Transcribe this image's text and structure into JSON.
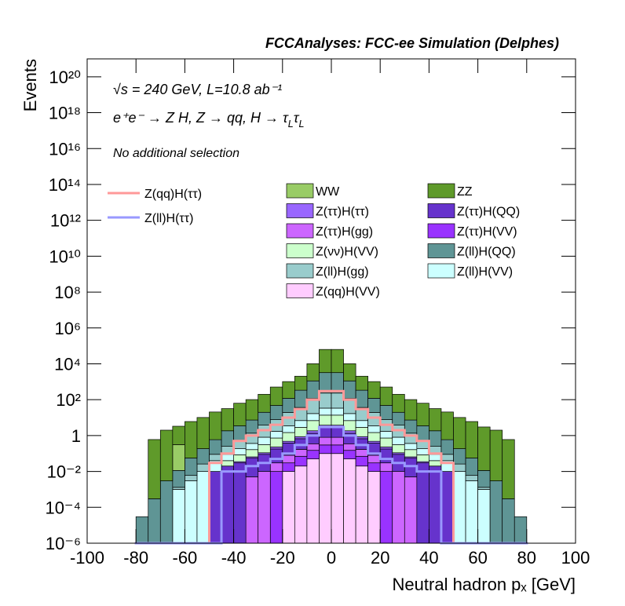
{
  "chart_data": {
    "type": "stacked_histogram",
    "title": "FCCAnalyses: FCC-ee Simulation (Delphes)",
    "x_label": "Neutral hadron pₓ [GeV]",
    "y_label": "Events",
    "annotations": [
      "√s = 240 GeV, L=10.8 ab⁻¹",
      "e⁺e⁻ → Z H, Z → qq, H → τ_Lτ_L",
      "No additional selection"
    ],
    "log_y": true,
    "xlim": [
      -100,
      100
    ],
    "xticks": [
      -100,
      -80,
      -60,
      -40,
      -20,
      0,
      20,
      40,
      60,
      80,
      100
    ],
    "ylim": [
      1e-06,
      1e+21
    ],
    "yticks": [
      {
        "value": 1e-06,
        "label": "10⁻⁶"
      },
      {
        "value": 0.0001,
        "label": "10⁻⁴"
      },
      {
        "value": 0.01,
        "label": "10⁻²"
      },
      1,
      {
        "value": 100,
        "label": "10²"
      },
      {
        "value": 10000.0,
        "label": "10⁴"
      },
      {
        "value": 1000000.0,
        "label": "10⁶"
      },
      {
        "value": 100000000.0,
        "label": "10⁸"
      },
      {
        "value": 10000000000.0,
        "label": "10¹⁰"
      },
      {
        "value": 1000000000000.0,
        "label": "10¹²"
      },
      {
        "value": 100000000000000.0,
        "label": "10¹⁴"
      },
      {
        "value": 1e+16,
        "label": "10¹⁶"
      },
      {
        "value": 1e+18,
        "label": "10¹⁸"
      },
      {
        "value": 1e+20,
        "label": "10²⁰"
      }
    ],
    "bins": [
      -80,
      -75,
      -70,
      -65,
      -60,
      -55,
      -50,
      -45,
      -40,
      -35,
      -30,
      -25,
      -20,
      -15,
      -10,
      -5,
      0,
      5,
      10,
      15,
      20,
      25,
      30,
      35,
      40,
      45,
      50,
      55,
      60,
      65,
      70,
      75,
      80
    ],
    "series": [
      {
        "name": "Z(qq)H(VV)",
        "color": "#ffccff",
        "values": [
          0,
          0,
          0,
          0,
          0,
          0,
          0,
          0,
          0,
          0,
          0,
          0,
          0.01,
          0.02,
          0.05,
          0.1,
          0.1,
          0.05,
          0.02,
          0.01,
          0,
          0,
          0,
          0,
          0,
          0,
          0,
          0,
          0,
          0,
          0,
          0
        ]
      },
      {
        "name": "Z(ττ)H(VV)",
        "color": "#9933ff",
        "values": [
          0,
          0,
          0,
          0,
          0,
          0,
          0,
          0,
          0,
          0,
          0,
          0.01,
          0.02,
          0.05,
          0.1,
          0.2,
          0.2,
          0.1,
          0.05,
          0.02,
          0.01,
          0,
          0,
          0,
          0,
          0,
          0,
          0,
          0,
          0,
          0,
          0
        ]
      },
      {
        "name": "Z(ττ)H(gg)",
        "color": "#cc66ff",
        "values": [
          0,
          0,
          0,
          0,
          0,
          0,
          0,
          0,
          0,
          0.005,
          0.01,
          0.02,
          0.05,
          0.1,
          0.2,
          0.5,
          0.5,
          0.2,
          0.1,
          0.05,
          0.02,
          0.01,
          0.005,
          0,
          0,
          0,
          0,
          0,
          0,
          0,
          0,
          0
        ]
      },
      {
        "name": "Z(ττ)H(QQ)",
        "color": "#6633cc",
        "values": [
          0,
          0,
          0,
          0,
          0,
          0,
          0.01,
          0.02,
          0.03,
          0.05,
          0.08,
          0.15,
          0.3,
          0.5,
          1,
          2,
          2,
          1,
          0.5,
          0.3,
          0.15,
          0.08,
          0.05,
          0.03,
          0.02,
          0.01,
          0,
          0,
          0,
          0,
          0,
          0
        ]
      },
      {
        "name": "Z(ττ)H(ττ)",
        "color": "#9966ff",
        "values": [
          0,
          0,
          0,
          0,
          0,
          0,
          0,
          0,
          0.005,
          0.01,
          0.02,
          0.05,
          0.1,
          0.2,
          0.5,
          1,
          1,
          0.5,
          0.2,
          0.1,
          0.05,
          0.02,
          0.01,
          0.005,
          0,
          0,
          0,
          0,
          0,
          0,
          0,
          0
        ]
      },
      {
        "name": "Z(νν)H(VV)",
        "color": "#ccffcc",
        "values": [
          0,
          0,
          0,
          0,
          0,
          0,
          0,
          0.02,
          0.05,
          0.1,
          0.2,
          0.5,
          1,
          2,
          5,
          10,
          10,
          5,
          2,
          1,
          0.5,
          0.2,
          0.1,
          0.05,
          0.02,
          0,
          0,
          0,
          0,
          0,
          0,
          0
        ]
      },
      {
        "name": "Z(ll)H(VV)",
        "color": "#ccffff",
        "values": [
          0,
          0,
          0,
          0.001,
          0.003,
          0.01,
          0.03,
          0.05,
          0.1,
          0.2,
          0.5,
          1,
          2,
          4,
          10,
          20,
          20,
          10,
          4,
          2,
          1,
          0.5,
          0.2,
          0.1,
          0.05,
          0.03,
          0.01,
          0.003,
          0.001,
          0,
          0,
          0
        ]
      },
      {
        "name": "Z(ll)H(gg)",
        "color": "#99cccc",
        "values": [
          0,
          0,
          0,
          0.0003,
          0.003,
          0.016,
          0.05,
          0.16,
          0.3,
          1,
          3,
          6,
          16,
          30,
          100,
          200,
          200,
          100,
          30,
          16,
          6,
          3,
          1,
          0.3,
          0.16,
          0.05,
          0.016,
          0.003,
          0.0003,
          0,
          0,
          0
        ]
      },
      {
        "name": "Z(ll)H(QQ)",
        "color": "#5f9595",
        "values": [
          3e-05,
          0.0003,
          0.003,
          0.01,
          0.05,
          0.16,
          0.5,
          1.6,
          3,
          6,
          16,
          40,
          100,
          300,
          1000,
          3000,
          3000,
          1000,
          300,
          100,
          40,
          16,
          6,
          3,
          1.6,
          0.5,
          0.16,
          0.05,
          0.01,
          0.003,
          0.0003,
          3e-05
        ]
      },
      {
        "name": "WW",
        "color": "#99cc66",
        "values": [
          0,
          0,
          0,
          0.3,
          0,
          0,
          0,
          0,
          0,
          0,
          0,
          0,
          0,
          0,
          0,
          0,
          0,
          0,
          0,
          0,
          0,
          0,
          0,
          0,
          0,
          0,
          0,
          0,
          0,
          0,
          0,
          0
        ]
      },
      {
        "name": "ZZ",
        "color": "#5f9a2a",
        "values": [
          0,
          0.6,
          2,
          3,
          6,
          10,
          20,
          30,
          60,
          94,
          180,
          460,
          900,
          1700,
          9000,
          60000,
          60000,
          9000,
          1700,
          900,
          460,
          180,
          94,
          60,
          30,
          20,
          10,
          6,
          3,
          2,
          0.6,
          0
        ]
      }
    ],
    "line_series": [
      {
        "name": "Z(qq)H(ττ)",
        "color": "#ff9999",
        "values": [
          0,
          0,
          0,
          0,
          0,
          0,
          0.03,
          0.1,
          0.5,
          1,
          2,
          4,
          10,
          30,
          100,
          300,
          300,
          100,
          30,
          10,
          4,
          2,
          1,
          0.5,
          0.1,
          0.03,
          0,
          0,
          0,
          0,
          0,
          0
        ]
      },
      {
        "name": "Z(ll)H(ττ)",
        "color": "#9999ff",
        "values": [
          0,
          0,
          0,
          0,
          0,
          0,
          0,
          0.01,
          0.01,
          0.02,
          0.03,
          0.05,
          0.1,
          0.3,
          1,
          3,
          3,
          1,
          0.3,
          0.1,
          0.05,
          0.03,
          0.02,
          0.01,
          0.01,
          0,
          0,
          0,
          0,
          0,
          0,
          0
        ]
      }
    ]
  }
}
